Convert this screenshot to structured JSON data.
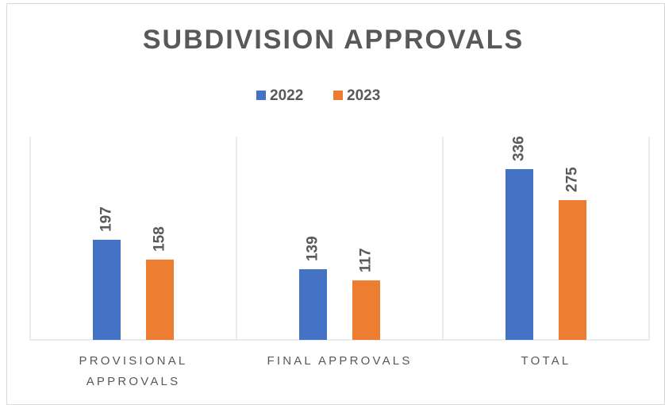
{
  "chart_data": {
    "type": "bar",
    "title": "SUBDIVISION APPROVALS",
    "categories": [
      "PROVISIONAL APPROVALS",
      "FINAL APPROVALS",
      "TOTAL"
    ],
    "series": [
      {
        "name": "2022",
        "color": "#4472c4",
        "values": [
          197,
          139,
          336
        ]
      },
      {
        "name": "2023",
        "color": "#ed7d31",
        "values": [
          158,
          117,
          275
        ]
      }
    ],
    "ylim": [
      0,
      400
    ],
    "legend": "top"
  }
}
